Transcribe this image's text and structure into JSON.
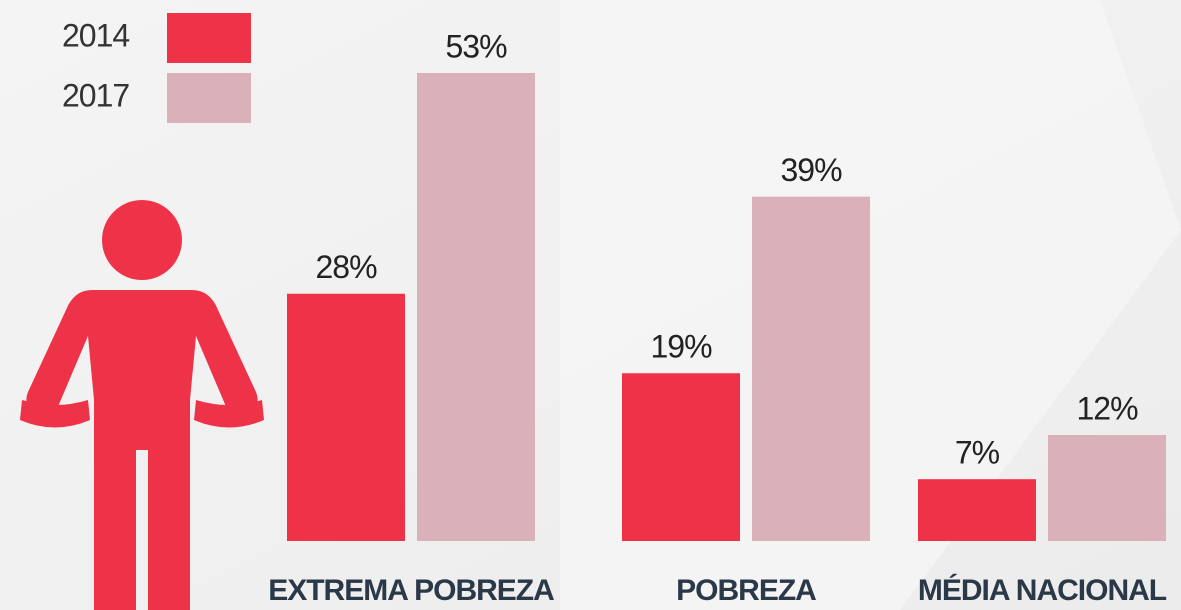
{
  "chart_data": {
    "type": "bar",
    "categories": [
      "EXTREMA POBREZA",
      "POBREZA",
      "MÉDIA NACIONAL"
    ],
    "series": [
      {
        "name": "2014",
        "color": "#ee3349",
        "values": [
          28,
          19,
          7
        ],
        "value_labels": [
          "28%",
          "19%",
          "7%"
        ]
      },
      {
        "name": "2017",
        "color": "#dbb1b9",
        "values": [
          53,
          39,
          12
        ],
        "value_labels": [
          "53%",
          "39%",
          "12%"
        ]
      }
    ]
  }
}
